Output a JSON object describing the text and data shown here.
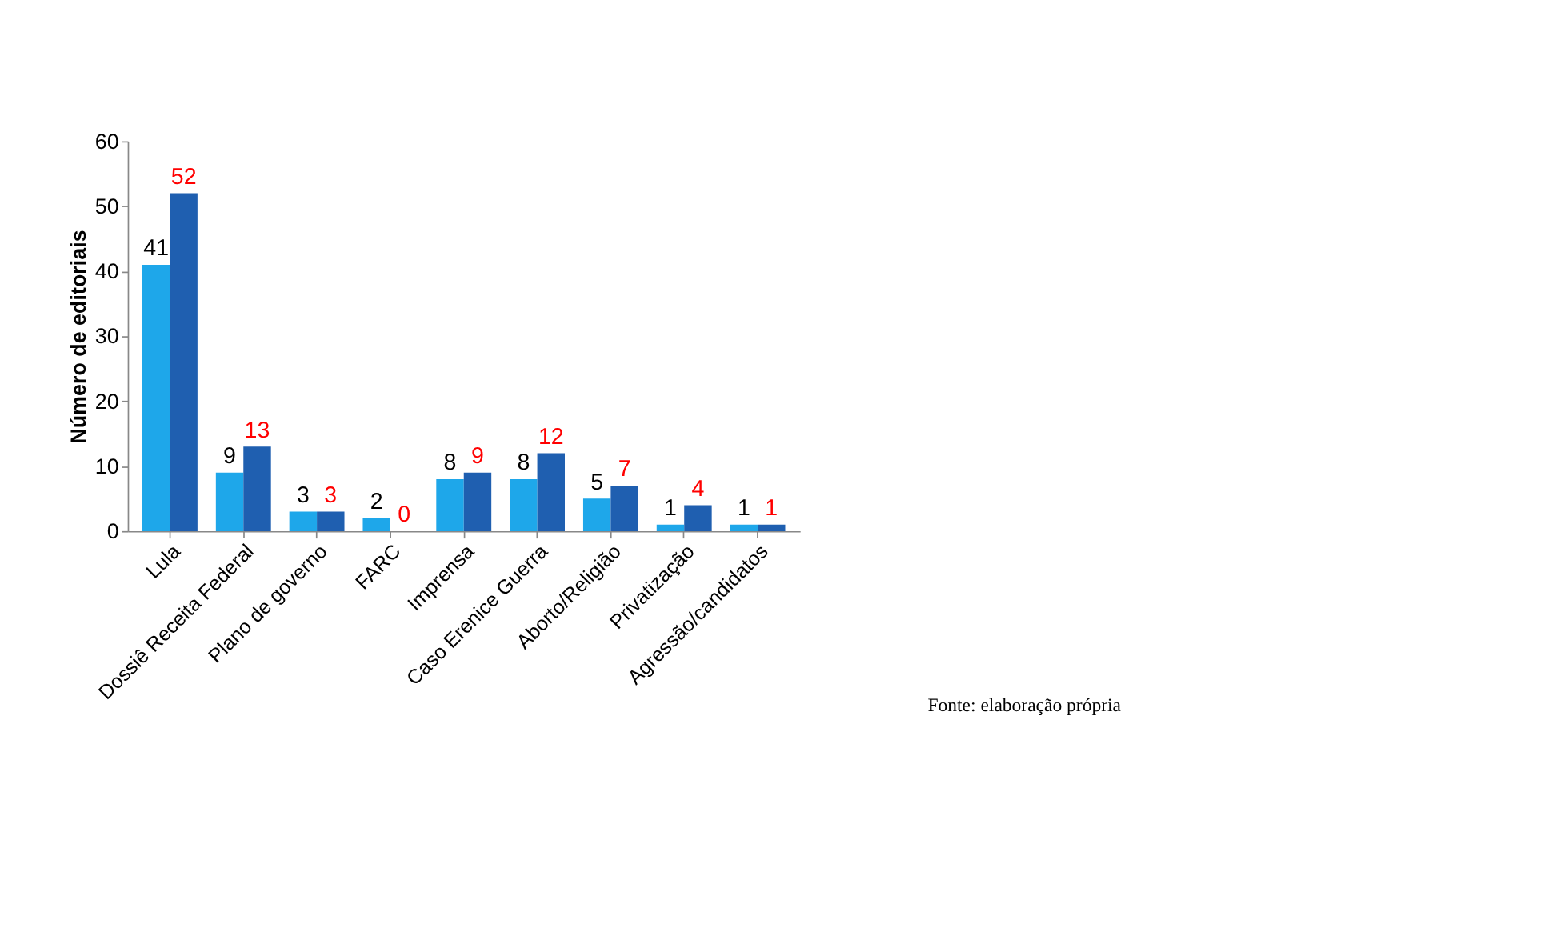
{
  "chart_data": {
    "type": "bar",
    "ylabel": "Número de editoriais",
    "categories": [
      "Lula",
      "Dossiê Receita Federal",
      "Plano de governo",
      "FARC",
      "Imprensa",
      "Caso Erenice Guerra",
      "Aborto/Religião",
      "Privatização",
      "Agressão/candidatos"
    ],
    "series": [
      {
        "color": "#1ea7ea",
        "values": [
          41,
          9,
          3,
          2,
          8,
          8,
          5,
          1,
          1
        ]
      },
      {
        "color": "#1f5fb0",
        "values": [
          52,
          13,
          3,
          0,
          9,
          12,
          7,
          4,
          1
        ]
      }
    ],
    "ylim": [
      0,
      60
    ],
    "yticks": [
      0,
      10,
      20,
      30,
      40,
      50,
      60
    ],
    "grid": false,
    "legend": false,
    "data_labels": true,
    "annotations": [
      "Fonte: elaboração própria"
    ]
  }
}
